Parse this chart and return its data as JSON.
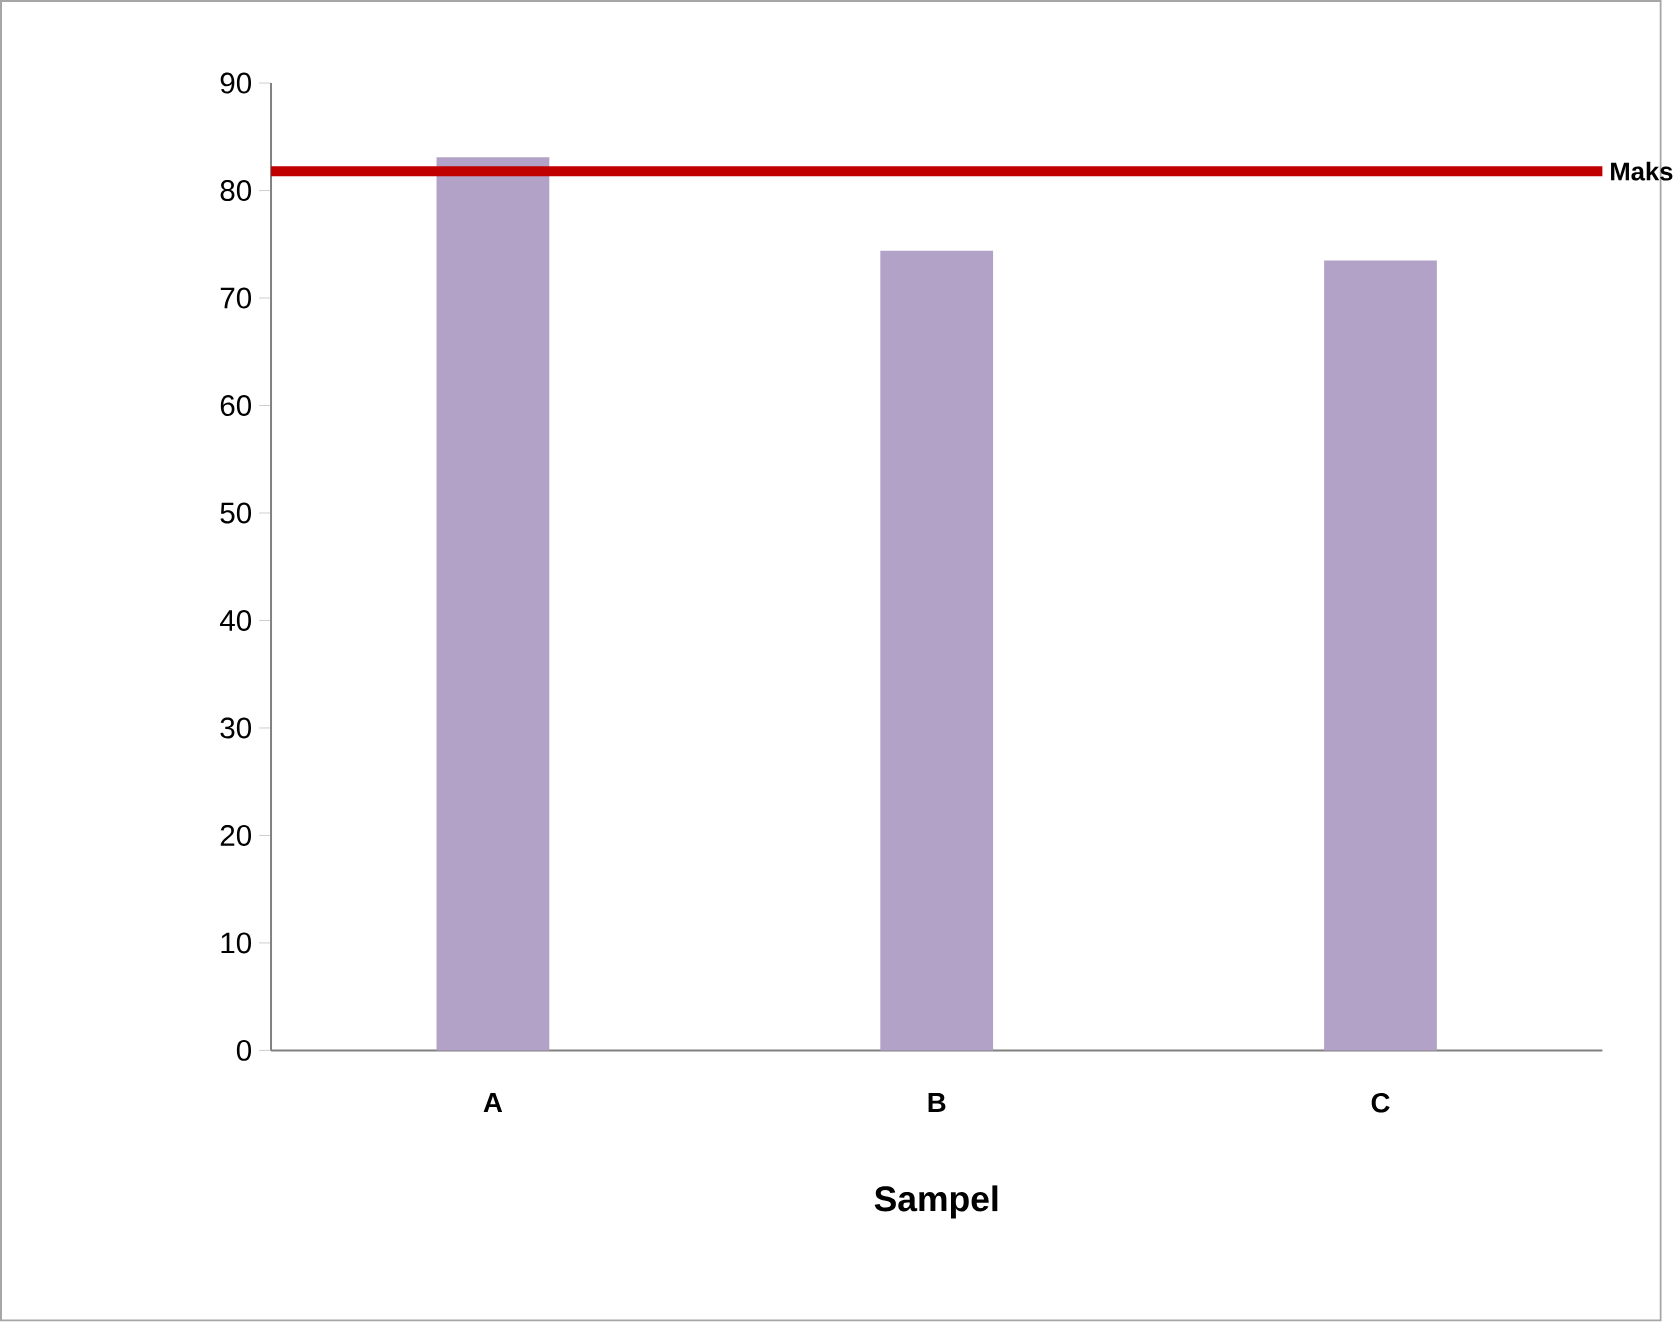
{
  "chart_data": {
    "type": "bar",
    "xlabel": "Sampel",
    "categories": [
      "A",
      "B",
      "C"
    ],
    "values": [
      83.1,
      74.4,
      73.5
    ],
    "color": "#b3a2c7",
    "ylim": [
      0,
      90
    ],
    "yticks": [
      0,
      10,
      20,
      30,
      40,
      50,
      60,
      70,
      80,
      90
    ],
    "grid": false,
    "ref_lines": [
      {
        "axis": "y",
        "value": 81.8,
        "label": "Maks",
        "color": "#c00000"
      }
    ]
  }
}
